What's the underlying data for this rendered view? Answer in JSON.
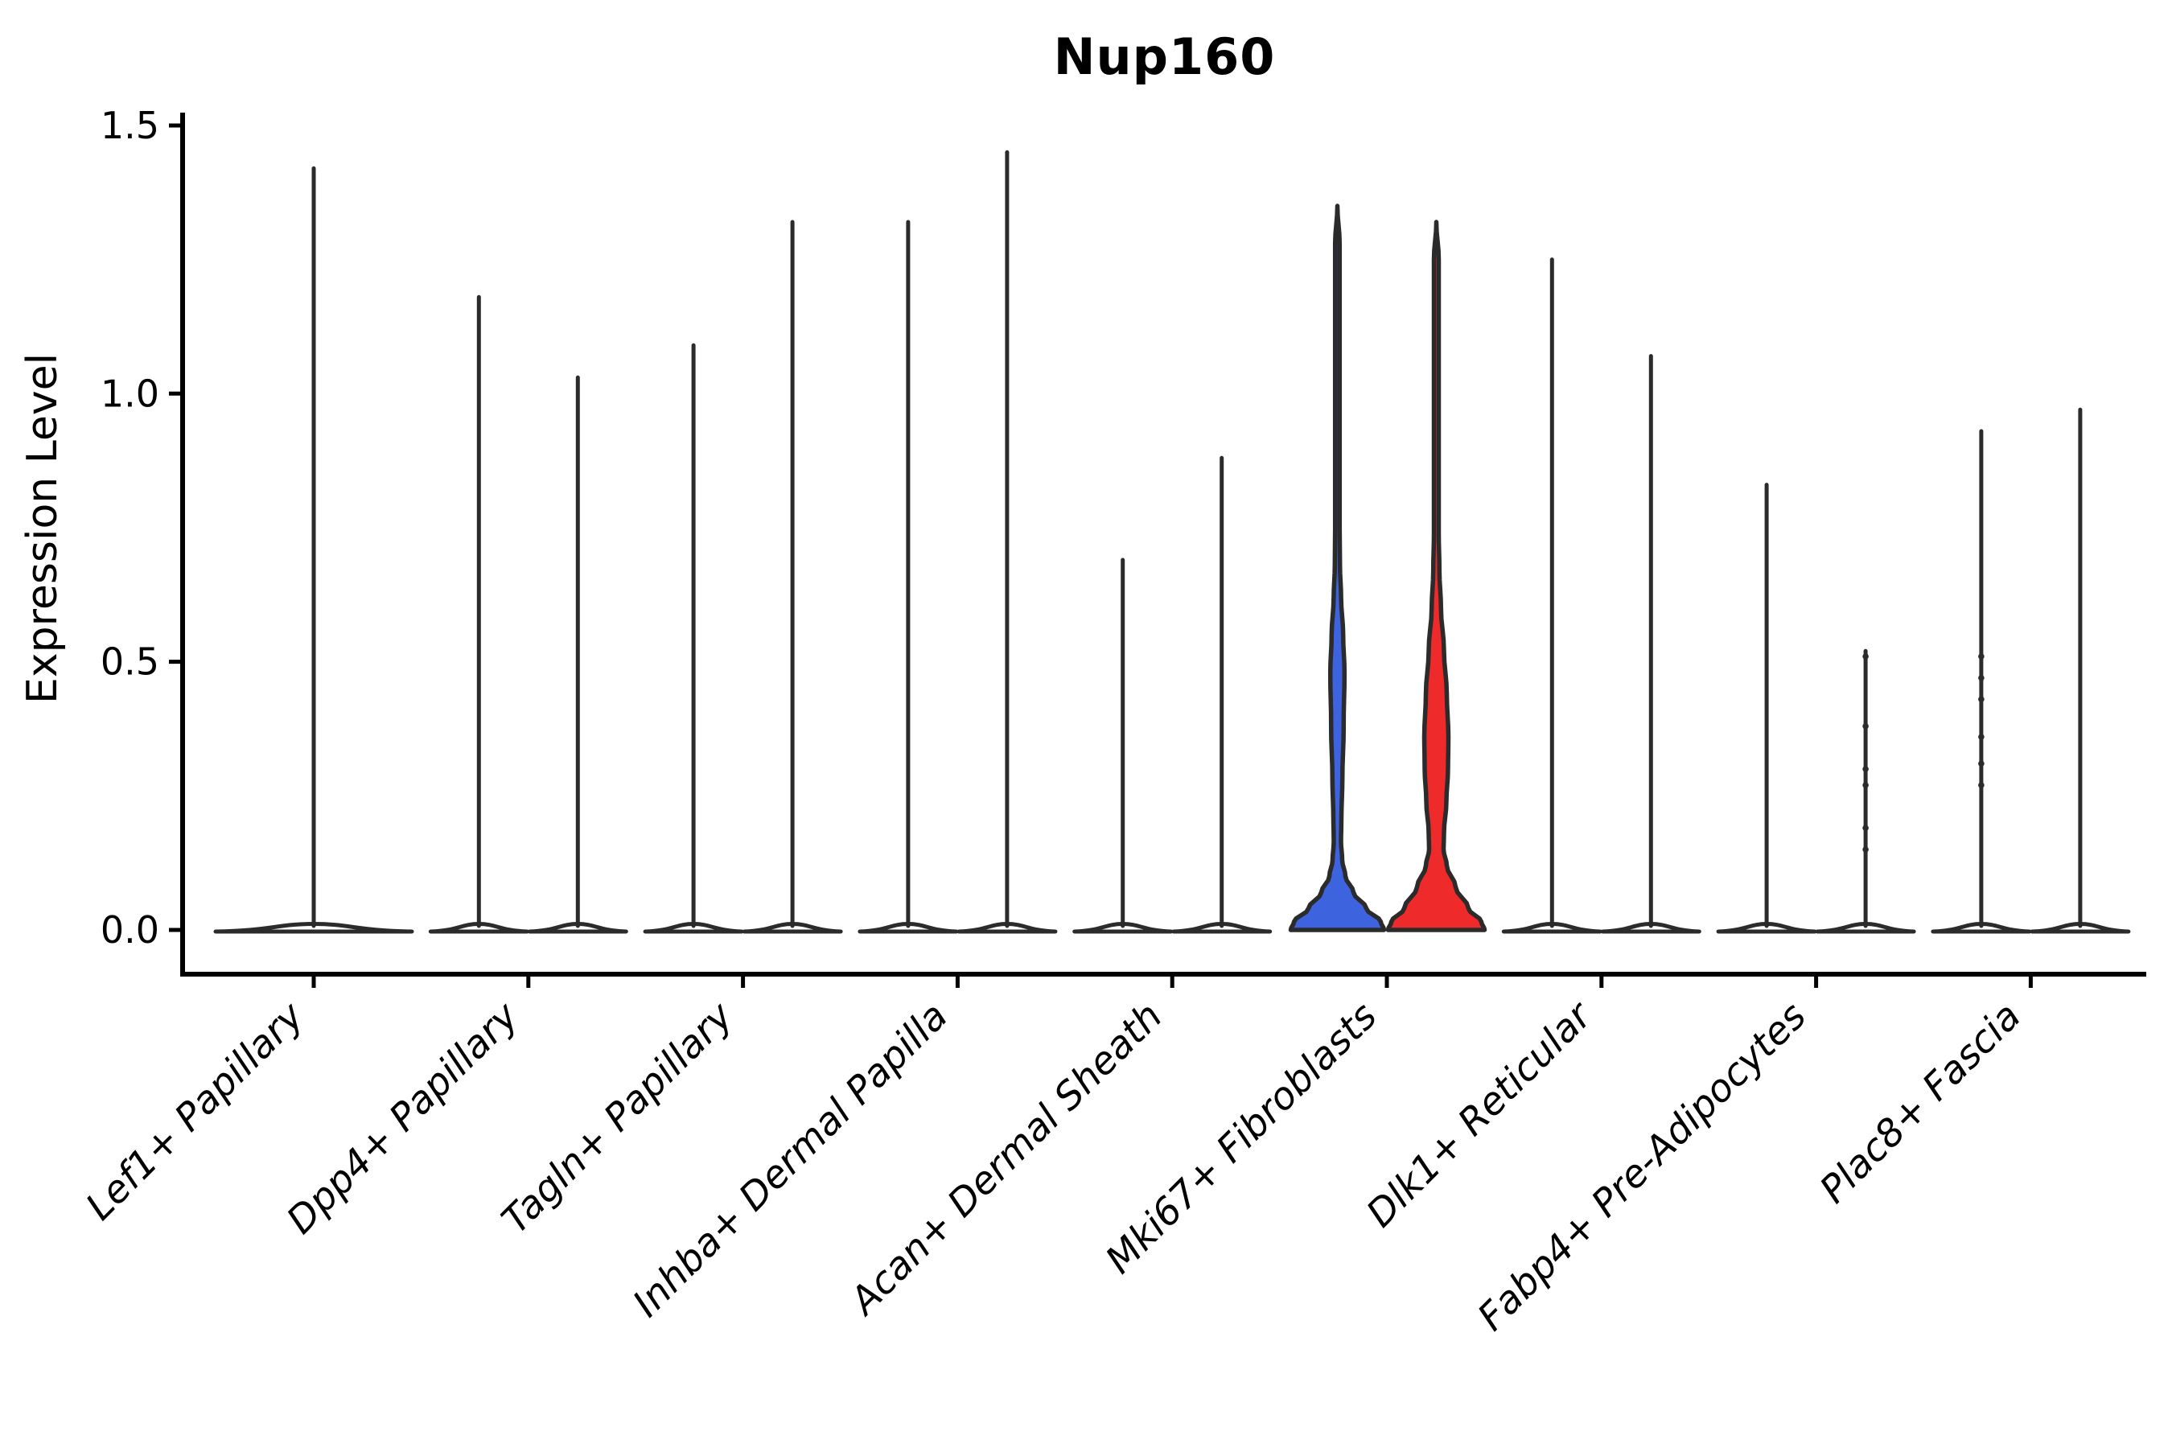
{
  "chart_data": {
    "type": "violin",
    "title": "Nup160",
    "ylabel": "Expression Level",
    "xlabel": "",
    "ytick_labels": [
      "0.0",
      "0.5",
      "1.0",
      "1.5"
    ],
    "ytick_values": [
      0.0,
      0.5,
      1.0,
      1.5
    ],
    "ylim": [
      -0.08,
      1.55
    ],
    "grid": false,
    "legend": "none",
    "categories": [
      "Lef1+ Papillary",
      "Dpp4+ Papillary",
      "Tagln+ Papillary",
      "Inhba+ Dermal Papilla",
      "Acan+ Dermal Sheath",
      "Mki67+ Fibroblasts",
      "Dlk1+ Reticular",
      "Fabp4+ Pre-Adipocytes",
      "Plac8+ Fascia"
    ],
    "colors": {
      "violin_outline": "#2b2b2b",
      "violin_fill_default": "#ffffff",
      "highlight_blue": "#3E63DE",
      "highlight_red": "#EE2A2A",
      "axis": "#000000",
      "background": "#ffffff"
    },
    "violins": [
      {
        "category": "Lef1+ Papillary",
        "side": "center",
        "max": 1.42,
        "fill": "default"
      },
      {
        "category": "Dpp4+ Papillary",
        "side": "left",
        "max": 1.18,
        "fill": "default"
      },
      {
        "category": "Dpp4+ Papillary",
        "side": "right",
        "max": 1.03,
        "fill": "default"
      },
      {
        "category": "Tagln+ Papillary",
        "side": "left",
        "max": 1.09,
        "fill": "default"
      },
      {
        "category": "Tagln+ Papillary",
        "side": "right",
        "max": 1.32,
        "fill": "default"
      },
      {
        "category": "Inhba+ Dermal Papilla",
        "side": "left",
        "max": 1.32,
        "fill": "default"
      },
      {
        "category": "Inhba+ Dermal Papilla",
        "side": "right",
        "max": 1.45,
        "fill": "default"
      },
      {
        "category": "Acan+ Dermal Sheath",
        "side": "left",
        "max": 0.69,
        "fill": "default"
      },
      {
        "category": "Acan+ Dermal Sheath",
        "side": "right",
        "max": 0.88,
        "fill": "default"
      },
      {
        "category": "Mki67+ Fibroblasts",
        "side": "left",
        "max": 1.35,
        "fill": "blue",
        "profile": [
          [
            0,
            58
          ],
          [
            0.015,
            54
          ],
          [
            0.04,
            36
          ],
          [
            0.07,
            20
          ],
          [
            0.1,
            10
          ],
          [
            0.13,
            6
          ],
          [
            0.165,
            4.5
          ],
          [
            0.21,
            5
          ],
          [
            0.28,
            6.2
          ],
          [
            0.38,
            7.8
          ],
          [
            0.48,
            8.8
          ],
          [
            0.55,
            7.2
          ],
          [
            0.62,
            4.6
          ],
          [
            0.68,
            3.2
          ],
          [
            0.75,
            2.8
          ],
          [
            1.28,
            2.8
          ],
          [
            1.35,
            0
          ]
        ]
      },
      {
        "category": "Mki67+ Fibroblasts",
        "side": "right",
        "max": 1.32,
        "fill": "red",
        "profile": [
          [
            0,
            60
          ],
          [
            0.015,
            56
          ],
          [
            0.04,
            40
          ],
          [
            0.08,
            24
          ],
          [
            0.12,
            13
          ],
          [
            0.15,
            9
          ],
          [
            0.18,
            9.5
          ],
          [
            0.24,
            12.5
          ],
          [
            0.3,
            14.5
          ],
          [
            0.36,
            15
          ],
          [
            0.44,
            13
          ],
          [
            0.52,
            9.5
          ],
          [
            0.6,
            5.8
          ],
          [
            0.67,
            3.8
          ],
          [
            0.74,
            3
          ],
          [
            1.25,
            3
          ],
          [
            1.32,
            0
          ]
        ]
      },
      {
        "category": "Dlk1+ Reticular",
        "side": "left",
        "max": 1.25,
        "fill": "default"
      },
      {
        "category": "Dlk1+ Reticular",
        "side": "right",
        "max": 1.07,
        "fill": "default"
      },
      {
        "category": "Fabp4+ Pre-Adipocytes",
        "side": "left",
        "max": 0.83,
        "fill": "default"
      },
      {
        "category": "Fabp4+ Pre-Adipocytes",
        "side": "right",
        "max": 0.52,
        "fill": "default",
        "dots": [
          0.51,
          0.38,
          0.3,
          0.27,
          0.19,
          0.15
        ]
      },
      {
        "category": "Plac8+ Fascia",
        "side": "left",
        "max": 0.93,
        "fill": "default",
        "dots": [
          0.51,
          0.47,
          0.43,
          0.36,
          0.31,
          0.27
        ]
      },
      {
        "category": "Plac8+ Fascia",
        "side": "right",
        "max": 0.97,
        "fill": "default"
      }
    ]
  }
}
